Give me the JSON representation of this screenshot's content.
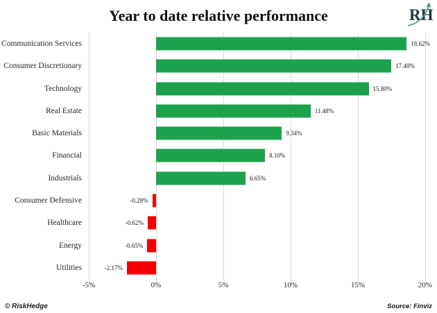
{
  "title": "Year to date relative performance",
  "logo": {
    "letters": "RH",
    "letter_color": "#24333d",
    "arrow_color": "#4f9b77",
    "arrow_icon": "growth-arrow-icon"
  },
  "chart_data": {
    "type": "bar",
    "orientation": "horizontal",
    "title": "Year to date relative performance",
    "categories": [
      "Communication Services",
      "Consumer Discretionary",
      "Technology",
      "Real Estate",
      "Basic Materials",
      "Financial",
      "Industrials",
      "Consumer Defensive",
      "Healthcare",
      "Energy",
      "Utilities"
    ],
    "values": [
      18.62,
      17.48,
      15.8,
      11.48,
      9.34,
      8.1,
      6.65,
      -0.28,
      -0.62,
      -0.65,
      -2.17
    ],
    "value_labels": [
      "18.62%",
      "17.48%",
      "15.80%",
      "11.48%",
      "9.34%",
      "8.10%",
      "6.65%",
      "-0.28%",
      "-0.62%",
      "-0.65%",
      "-2.17%"
    ],
    "x_ticks": [
      "-5%",
      "0%",
      "5%",
      "10%",
      "15%",
      "20%"
    ],
    "x_tick_values": [
      -5,
      0,
      5,
      10,
      15,
      20
    ],
    "xlim": [
      -5,
      20
    ],
    "grid": true,
    "legend": "none",
    "positive_color": "#1ca24c",
    "negative_color": "#f40000",
    "gridline_color": "#d9d9d9"
  },
  "footer": {
    "left": "© RiskHedge",
    "right": "Source: Finviz"
  }
}
